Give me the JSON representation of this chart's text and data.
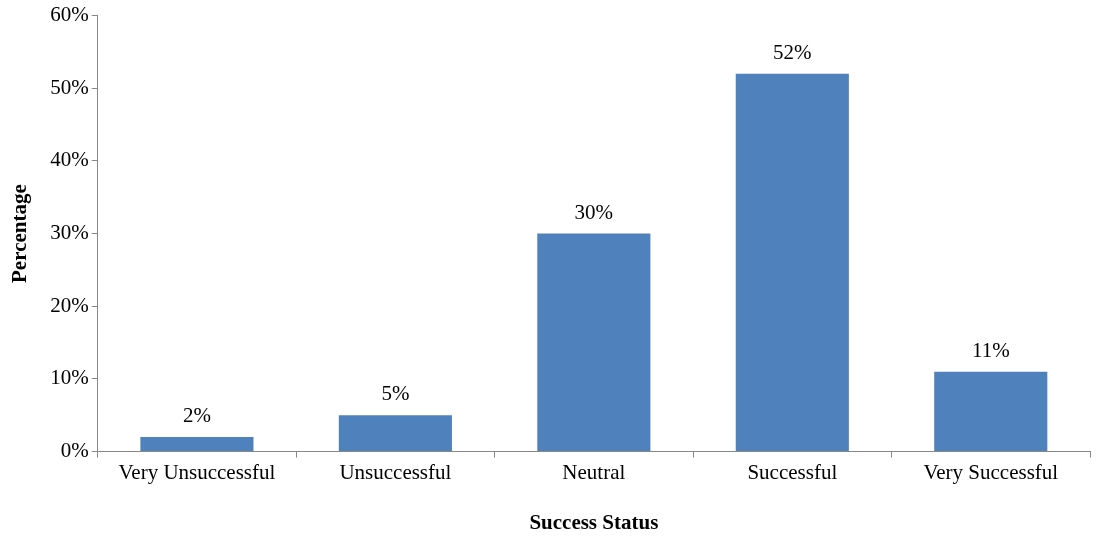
{
  "chart_data": {
    "type": "bar",
    "xlabel": "Success Status",
    "ylabel": "Percentage",
    "categories": [
      "Very Unsuccessful",
      "Unsuccessful",
      "Neutral",
      "Successful",
      "Very Successful"
    ],
    "values": [
      2,
      5,
      30,
      52,
      11
    ],
    "value_labels": [
      "2%",
      "5%",
      "30%",
      "52%",
      "11%"
    ],
    "color": "#4f81bd",
    "ylim": [
      0,
      60
    ],
    "yticks": [
      {
        "value": 0,
        "label": "0%"
      },
      {
        "value": 10,
        "label": "10%"
      },
      {
        "value": 20,
        "label": "20%"
      },
      {
        "value": 30,
        "label": "30%"
      },
      {
        "value": 40,
        "label": "40%"
      },
      {
        "value": 50,
        "label": "50%"
      },
      {
        "value": 60,
        "label": "60%"
      }
    ],
    "grid": false,
    "legend": false
  }
}
